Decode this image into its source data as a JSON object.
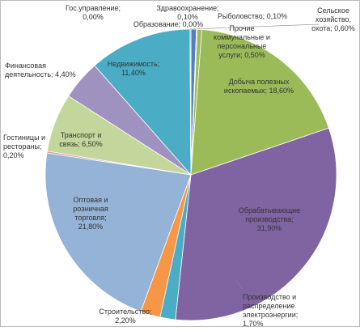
{
  "chart_data": {
    "type": "pie",
    "values": [
      0.6,
      0.1,
      0.5,
      18.6,
      31.9,
      1.7,
      2.2,
      21.8,
      0.2,
      6.5,
      4.4,
      11.4,
      0,
      0,
      0.1
    ],
    "value_labels": [
      "Сельское хозяйство, охота; 0,60%",
      "Рыболовство; 0,10%",
      "Прочие коммунальные и персональные услуги; 0,50%",
      "Добыча полезных ископаемых; 18,60%",
      "Обрабатывающие производства; 31,90%",
      "Производство и распределение электроэнергии; 1,70%",
      "Строительство; 2,20%",
      "Оптовая и розничная торговля; 21,80%",
      "Гостиницы и рестораны; 0,20%",
      "Транспорт и связь; 6,50%",
      "Финансовая деятельность; 4,40%",
      "Недвижимость; 11,40%",
      "Гос.управление; 0,00%",
      "Образование; 0,00%",
      "Здравоохранение; 0,10%"
    ],
    "colors": [
      "#4F81BD",
      "#C0504D",
      "#9BBB59",
      "#9BBB59",
      "#8064A2",
      "#4BACC6",
      "#F79646",
      "#95B3D7",
      "#D99694",
      "#C3D69B",
      "#A092C0",
      "#4BACC6",
      "#F9B98A",
      "#7F9FCB",
      "#4F81BD"
    ]
  }
}
